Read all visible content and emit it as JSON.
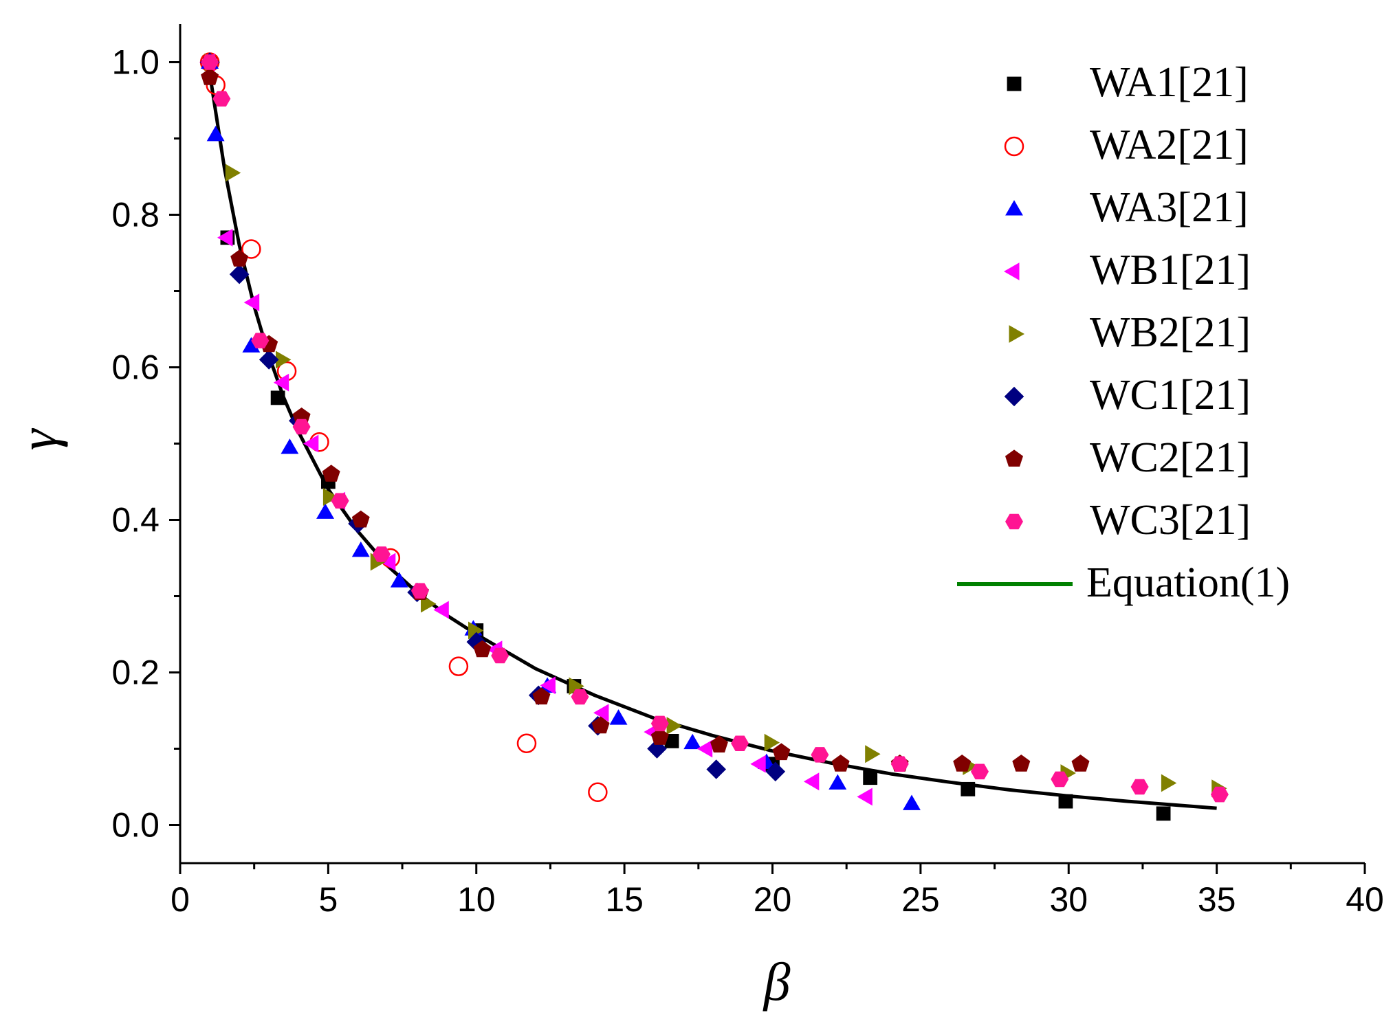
{
  "chart_data": {
    "type": "scatter",
    "title": "",
    "xlabel": "β",
    "ylabel": "γ",
    "xlim": [
      0,
      40
    ],
    "ylim": [
      -0.05,
      1.05
    ],
    "x_ticks": [
      "0",
      "5",
      "10",
      "15",
      "20",
      "25",
      "30",
      "35",
      "40"
    ],
    "y_ticks": [
      "0.0",
      "0.2",
      "0.4",
      "0.6",
      "0.8",
      "1.0"
    ],
    "legend_position": "top-right",
    "series": [
      {
        "name": "WA1[21]",
        "marker": "square",
        "color": "#000000",
        "points": [
          [
            1.0,
            1.0
          ],
          [
            1.6,
            0.77
          ],
          [
            3.3,
            0.56
          ],
          [
            5.0,
            0.45
          ],
          [
            10.0,
            0.255
          ],
          [
            13.3,
            0.182
          ],
          [
            16.6,
            0.11
          ],
          [
            20.0,
            0.08
          ],
          [
            23.3,
            0.062
          ],
          [
            26.6,
            0.047
          ],
          [
            29.9,
            0.031
          ],
          [
            33.2,
            0.015
          ]
        ]
      },
      {
        "name": "WA2[21]",
        "marker": "open-circle",
        "color": "#ff0000",
        "points": [
          [
            1.0,
            1.0
          ],
          [
            1.2,
            0.97
          ],
          [
            2.4,
            0.755
          ],
          [
            3.6,
            0.595
          ],
          [
            4.7,
            0.502
          ],
          [
            7.1,
            0.35
          ],
          [
            9.4,
            0.208
          ],
          [
            11.7,
            0.107
          ],
          [
            14.1,
            0.043
          ]
        ]
      },
      {
        "name": "WA3[21]",
        "marker": "triangle-up",
        "color": "#0000ff",
        "points": [
          [
            1.0,
            1.0
          ],
          [
            1.2,
            0.905
          ],
          [
            2.4,
            0.628
          ],
          [
            3.7,
            0.495
          ],
          [
            4.9,
            0.41
          ],
          [
            6.1,
            0.36
          ],
          [
            7.4,
            0.32
          ],
          [
            9.9,
            0.257
          ],
          [
            12.4,
            0.182
          ],
          [
            14.8,
            0.14
          ],
          [
            17.3,
            0.108
          ],
          [
            19.8,
            0.082
          ],
          [
            22.2,
            0.055
          ],
          [
            24.7,
            0.028
          ]
        ]
      },
      {
        "name": "WB1[21]",
        "marker": "triangle-left",
        "color": "#ff00ff",
        "points": [
          [
            1.0,
            1.0
          ],
          [
            1.6,
            0.77
          ],
          [
            2.5,
            0.685
          ],
          [
            3.5,
            0.58
          ],
          [
            4.5,
            0.5
          ],
          [
            5.4,
            0.425
          ],
          [
            7.1,
            0.345
          ],
          [
            8.9,
            0.282
          ],
          [
            10.7,
            0.23
          ],
          [
            12.5,
            0.183
          ],
          [
            14.3,
            0.147
          ],
          [
            16.0,
            0.122
          ],
          [
            17.8,
            0.1
          ],
          [
            19.6,
            0.08
          ],
          [
            21.4,
            0.057
          ],
          [
            23.2,
            0.037
          ]
        ]
      },
      {
        "name": "WB2[21]",
        "marker": "triangle-right",
        "color": "#808000",
        "points": [
          [
            1.0,
            1.0
          ],
          [
            1.7,
            0.855
          ],
          [
            3.4,
            0.61
          ],
          [
            5.0,
            0.43
          ],
          [
            6.6,
            0.345
          ],
          [
            8.3,
            0.29
          ],
          [
            9.9,
            0.255
          ],
          [
            13.3,
            0.182
          ],
          [
            16.6,
            0.13
          ],
          [
            19.9,
            0.108
          ],
          [
            23.3,
            0.093
          ],
          [
            26.6,
            0.077
          ],
          [
            29.9,
            0.068
          ],
          [
            33.3,
            0.055
          ],
          [
            35.0,
            0.048
          ]
        ]
      },
      {
        "name": "WC1[21]",
        "marker": "diamond",
        "color": "#000080",
        "points": [
          [
            1.0,
            1.0
          ],
          [
            2.0,
            0.722
          ],
          [
            3.0,
            0.61
          ],
          [
            4.0,
            0.53
          ],
          [
            6.0,
            0.395
          ],
          [
            8.0,
            0.305
          ],
          [
            10.0,
            0.24
          ],
          [
            12.1,
            0.17
          ],
          [
            14.1,
            0.13
          ],
          [
            16.1,
            0.1
          ],
          [
            18.1,
            0.073
          ],
          [
            20.1,
            0.07
          ]
        ]
      },
      {
        "name": "WC2[21]",
        "marker": "pentagon",
        "color": "#800000",
        "points": [
          [
            1.0,
            0.98
          ],
          [
            2.0,
            0.742
          ],
          [
            3.0,
            0.63
          ],
          [
            4.1,
            0.535
          ],
          [
            5.1,
            0.46
          ],
          [
            6.1,
            0.4
          ],
          [
            8.1,
            0.305
          ],
          [
            10.2,
            0.23
          ],
          [
            12.2,
            0.168
          ],
          [
            14.2,
            0.13
          ],
          [
            16.2,
            0.115
          ],
          [
            18.2,
            0.105
          ],
          [
            20.3,
            0.095
          ],
          [
            22.3,
            0.08
          ],
          [
            24.3,
            0.08
          ],
          [
            26.4,
            0.08
          ],
          [
            28.4,
            0.08
          ],
          [
            30.4,
            0.08
          ]
        ]
      },
      {
        "name": "WC3[21]",
        "marker": "hexagon",
        "color": "#ff1493",
        "points": [
          [
            1.0,
            1.0
          ],
          [
            1.4,
            0.952
          ],
          [
            2.7,
            0.635
          ],
          [
            4.1,
            0.522
          ],
          [
            5.4,
            0.425
          ],
          [
            6.8,
            0.355
          ],
          [
            8.1,
            0.307
          ],
          [
            10.8,
            0.222
          ],
          [
            13.5,
            0.168
          ],
          [
            16.2,
            0.133
          ],
          [
            18.9,
            0.107
          ],
          [
            21.6,
            0.092
          ],
          [
            24.3,
            0.08
          ],
          [
            27.0,
            0.07
          ],
          [
            29.7,
            0.06
          ],
          [
            32.4,
            0.05
          ],
          [
            35.1,
            0.04
          ]
        ]
      },
      {
        "name": "Equation(1)",
        "marker": "line",
        "color": "#000000",
        "legend_color": "#008000",
        "points": [
          [
            1.0,
            0.985
          ],
          [
            1.5,
            0.86
          ],
          [
            2.0,
            0.76
          ],
          [
            2.5,
            0.68
          ],
          [
            3.0,
            0.615
          ],
          [
            3.5,
            0.56
          ],
          [
            4.0,
            0.515
          ],
          [
            5.0,
            0.44
          ],
          [
            6.0,
            0.385
          ],
          [
            7.0,
            0.34
          ],
          [
            8.0,
            0.305
          ],
          [
            9.0,
            0.275
          ],
          [
            10.0,
            0.25
          ],
          [
            12.0,
            0.205
          ],
          [
            14.0,
            0.17
          ],
          [
            16.0,
            0.14
          ],
          [
            18.0,
            0.117
          ],
          [
            20.0,
            0.097
          ],
          [
            22.0,
            0.081
          ],
          [
            24.0,
            0.067
          ],
          [
            26.0,
            0.056
          ],
          [
            28.0,
            0.046
          ],
          [
            30.0,
            0.038
          ],
          [
            32.0,
            0.031
          ],
          [
            34.0,
            0.025
          ],
          [
            35.0,
            0.022
          ]
        ]
      }
    ]
  }
}
